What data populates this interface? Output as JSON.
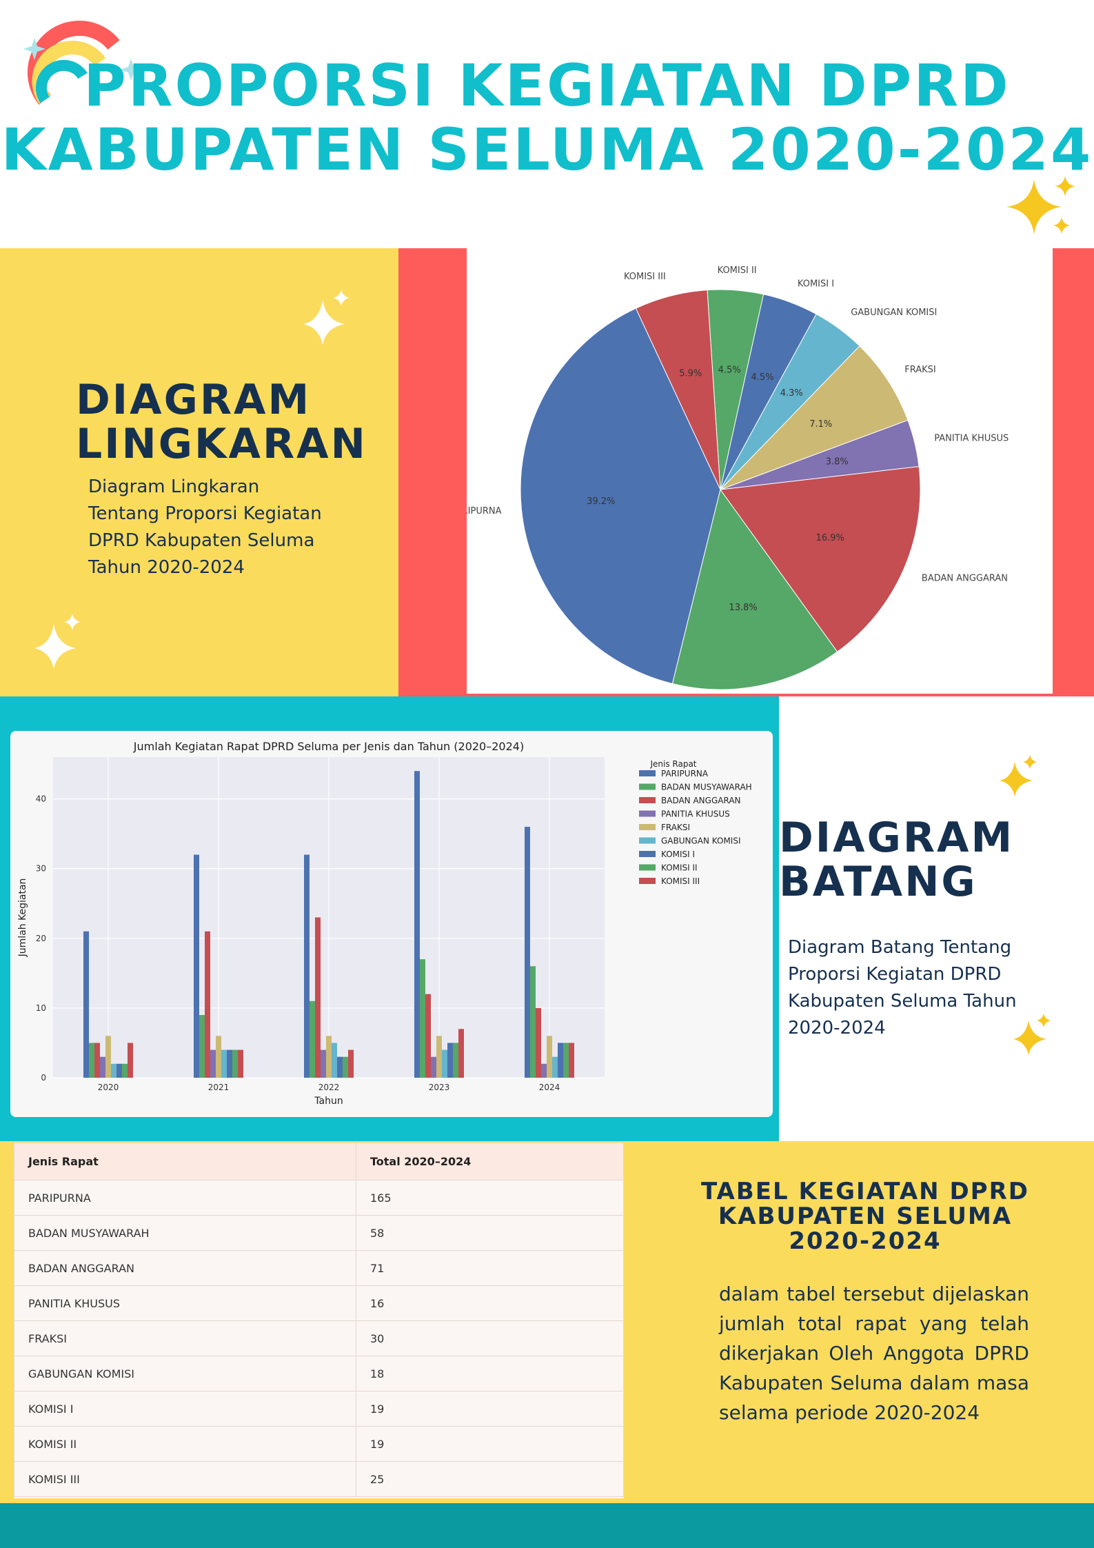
{
  "header": {
    "title_line1": "PROPORSI KEGIATAN DPRD",
    "title_line2": "KABUPATEN SELUMA 2020-2024"
  },
  "pie_section": {
    "heading_line1": "DIAGRAM",
    "heading_line2": "LINGKARAN",
    "description_lines": [
      "Diagram Lingkaran",
      "Tentang Proporsi Kegiatan",
      "DPRD Kabupaten Seluma",
      "Tahun 2020-2024"
    ]
  },
  "bar_section": {
    "heading_line1": "DIAGRAM",
    "heading_line2": "BATANG",
    "description_lines": [
      "Diagram Batang Tentang",
      "Proporsi Kegiatan DPRD",
      "Kabupaten Seluma Tahun",
      "2020-2024"
    ]
  },
  "table_section": {
    "heading_lines": [
      "TABEL KEGIATAN DPRD",
      "KABUPATEN SELUMA",
      "2020-2024"
    ],
    "description": "dalam tabel tersebut dijelaskan jumlah total rapat yang telah dikerjakan Oleh Anggota DPRD Kabupaten Seluma dalam masa selama periode 2020-2024",
    "headers": [
      "Jenis Rapat",
      "Total 2020–2024"
    ],
    "rows": [
      [
        "PARIPURNA",
        "165"
      ],
      [
        "BADAN MUSYAWARAH",
        "58"
      ],
      [
        "BADAN ANGGARAN",
        "71"
      ],
      [
        "PANITIA KHUSUS",
        "16"
      ],
      [
        "FRAKSI",
        "30"
      ],
      [
        "GABUNGAN KOMISI",
        "18"
      ],
      [
        "KOMISI I",
        "19"
      ],
      [
        "KOMISI II",
        "19"
      ],
      [
        "KOMISI III",
        "25"
      ]
    ]
  },
  "colors": {
    "teal": "#0fbfcb",
    "yellow": "#fbdb5c",
    "coral": "#fe5b5b",
    "navy": "#16304f",
    "bottom_bar": "#0a9aa0"
  },
  "chart_data": [
    {
      "type": "pie",
      "title": "",
      "categories": [
        "PARIPURNA",
        "BADAN MUSYAWARAH",
        "BADAN ANGGARAN",
        "PANITIA KHUSUS",
        "FRAKSI",
        "GABUNGAN KOMISI",
        "KOMISI I",
        "KOMISI II",
        "KOMISI III"
      ],
      "values": [
        39.2,
        13.8,
        16.9,
        3.8,
        7.1,
        4.3,
        4.5,
        4.5,
        5.9
      ],
      "value_labels": [
        "39.2%",
        "13.8%",
        "16.9%",
        "3.8%",
        "7.1%",
        "4.3%",
        "4.5%",
        "4.5%",
        "5.9%"
      ],
      "colors": [
        "#4c72b0",
        "#55a868",
        "#c44e52",
        "#8172b2",
        "#ccb974",
        "#64b5cd",
        "#4c72b0",
        "#55a868",
        "#c44e52"
      ]
    },
    {
      "type": "bar",
      "title": "Jumlah Kegiatan Rapat DPRD Seluma per Jenis dan Tahun (2020–2024)",
      "xlabel": "Tahun",
      "ylabel": "Jumlah Kegiatan",
      "categories": [
        "2020",
        "2021",
        "2022",
        "2023",
        "2024"
      ],
      "ylim": [
        0,
        46
      ],
      "yticks": [
        0,
        10,
        20,
        30,
        40
      ],
      "grid": true,
      "legend_title": "Jenis Rapat",
      "legend_position": "outside right",
      "series": [
        {
          "name": "PARIPURNA",
          "color": "#4c72b0",
          "values": [
            21,
            32,
            32,
            44,
            36
          ]
        },
        {
          "name": "BADAN MUSYAWARAH",
          "color": "#55a868",
          "values": [
            5,
            9,
            11,
            17,
            16
          ]
        },
        {
          "name": "BADAN ANGGARAN",
          "color": "#c44e52",
          "values": [
            5,
            21,
            23,
            12,
            10
          ]
        },
        {
          "name": "PANITIA KHUSUS",
          "color": "#8172b2",
          "values": [
            3,
            4,
            4,
            3,
            2
          ]
        },
        {
          "name": "FRAKSI",
          "color": "#ccb974",
          "values": [
            6,
            6,
            6,
            6,
            6
          ]
        },
        {
          "name": "GABUNGAN KOMISI",
          "color": "#64b5cd",
          "values": [
            2,
            4,
            5,
            4,
            3
          ]
        },
        {
          "name": "KOMISI I",
          "color": "#4c72b0",
          "values": [
            2,
            4,
            3,
            5,
            5
          ]
        },
        {
          "name": "KOMISI II",
          "color": "#55a868",
          "values": [
            2,
            4,
            3,
            5,
            5
          ]
        },
        {
          "name": "KOMISI III",
          "color": "#c44e52",
          "values": [
            5,
            4,
            4,
            7,
            5
          ]
        }
      ]
    }
  ]
}
